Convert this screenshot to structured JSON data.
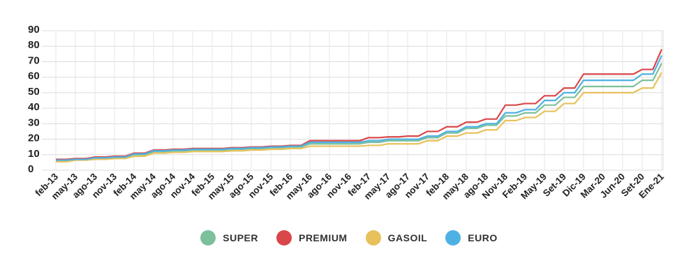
{
  "chart_data": {
    "type": "line",
    "title": "",
    "xlabel": "",
    "ylabel": "",
    "ylim": [
      0,
      90
    ],
    "yticks": [
      "0",
      "10",
      "20",
      "30",
      "40",
      "50",
      "60",
      "70",
      "80",
      "90"
    ],
    "grid": true,
    "legend_position": "bottom",
    "categories": [
      "feb-13",
      "may-13",
      "ago-13",
      "nov-13",
      "feb-14",
      "may-14",
      "ago-14",
      "nov-14",
      "feb-15",
      "may-15",
      "ago-15",
      "nov-15",
      "feb-16",
      "may-16",
      "ago-16",
      "nov-16",
      "feb-17",
      "may-17",
      "ago-17",
      "nov-17",
      "feb-18",
      "may-18",
      "ago-18",
      "Nov-18",
      "Feb-19",
      "May-19",
      "Set-19",
      "Dic-19",
      "Mar-20",
      "Jun-20",
      "Set-20",
      "Ene-21"
    ],
    "series": [
      {
        "name": "SUPER",
        "color": "#7cc09c",
        "values": [
          6,
          7,
          7.5,
          8,
          10,
          12,
          12.5,
          13,
          13,
          13.5,
          14,
          14.5,
          15,
          17,
          17,
          17,
          18,
          19,
          19,
          21,
          24,
          27,
          29,
          35,
          37,
          42,
          47,
          54,
          54,
          54,
          58,
          69
        ]
      },
      {
        "name": "PREMIUM",
        "color": "#d9474a",
        "values": [
          7,
          7.5,
          8.5,
          9,
          11,
          13,
          13.5,
          14,
          14,
          14.5,
          15,
          15.5,
          16,
          19,
          19,
          19,
          21,
          21.5,
          22,
          25,
          28,
          31,
          33,
          42,
          43,
          48,
          53,
          62,
          62,
          62,
          65,
          78
        ]
      },
      {
        "name": "GASOIL",
        "color": "#e8c15c",
        "values": [
          5.5,
          6.5,
          7,
          7.5,
          9,
          11,
          11.5,
          12,
          12,
          12.5,
          13,
          13.5,
          14,
          15.5,
          15.5,
          15.5,
          16,
          17,
          17,
          19,
          22,
          24,
          26,
          32,
          34,
          38,
          43,
          50,
          50,
          50,
          53,
          63
        ]
      },
      {
        "name": "EURO",
        "color": "#4eb1e3",
        "values": [
          6.5,
          7,
          8,
          8.5,
          10.5,
          12.5,
          13,
          13.5,
          13.5,
          14,
          14.5,
          15,
          15.5,
          18,
          18,
          18,
          19,
          20,
          20,
          22,
          25,
          28,
          30,
          37,
          39,
          45,
          50,
          58,
          58,
          58,
          62,
          74
        ]
      }
    ]
  }
}
